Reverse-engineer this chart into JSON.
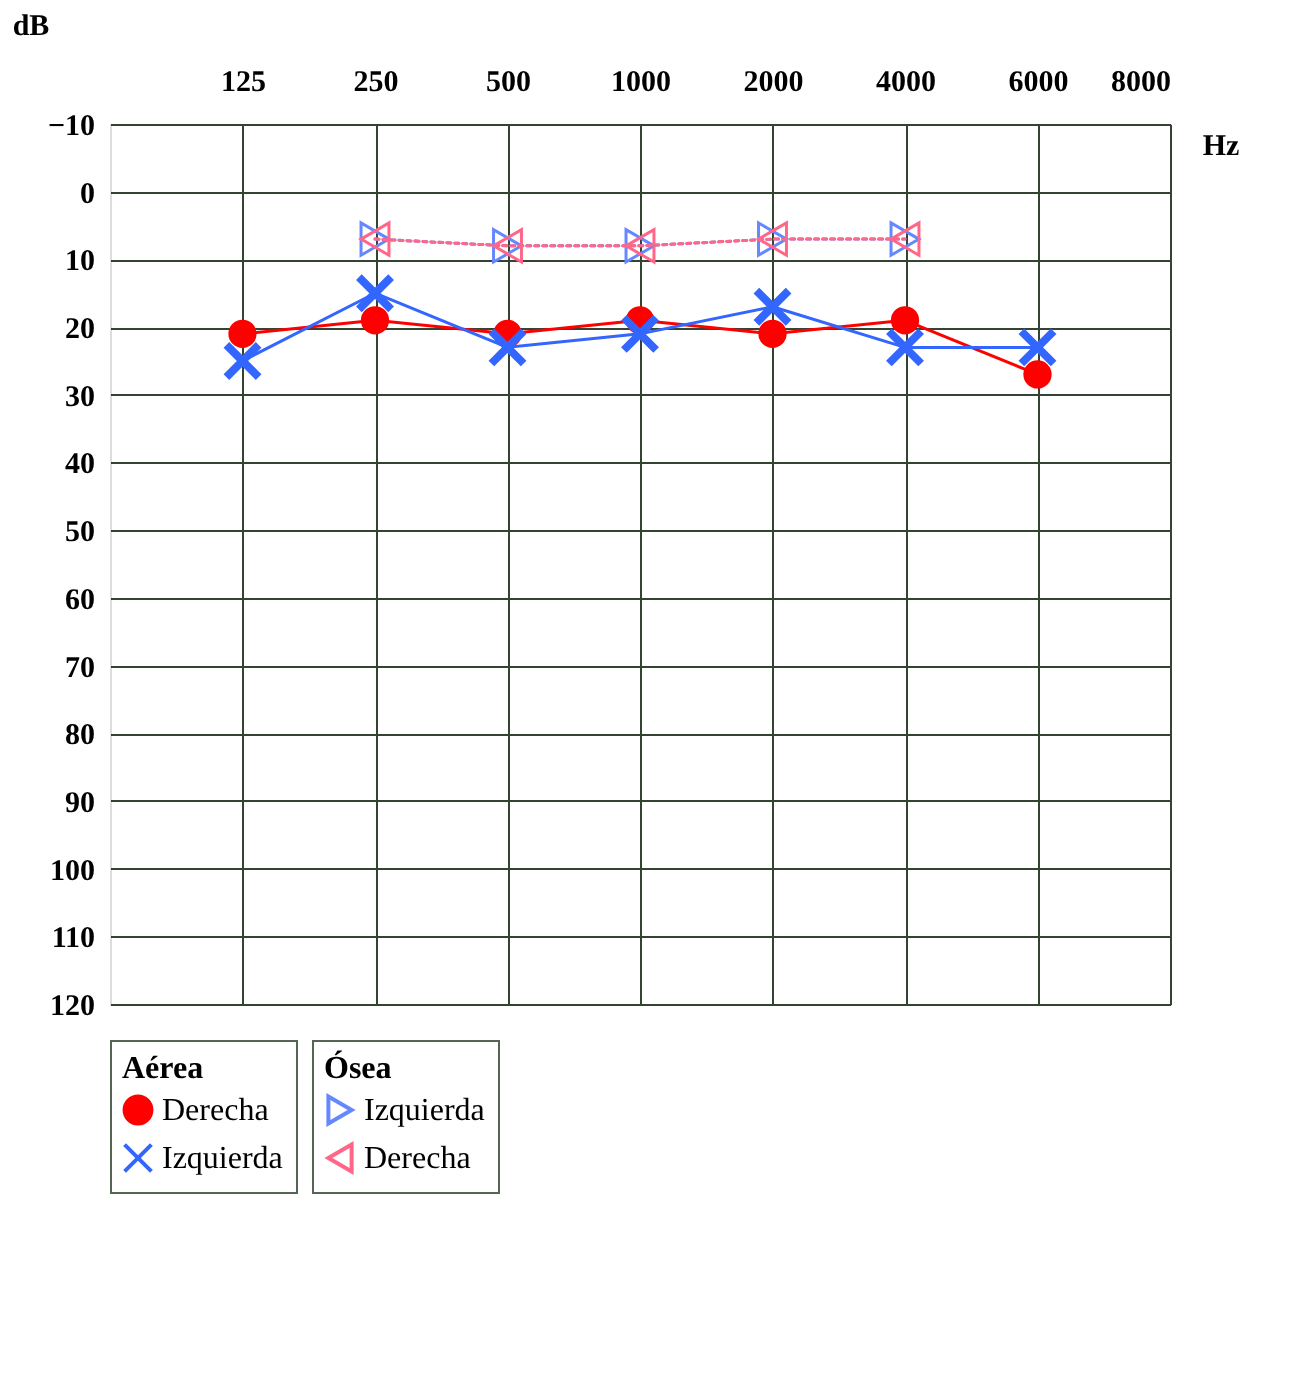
{
  "chart_data": {
    "type": "line",
    "categories": [
      "125",
      "250",
      "500",
      "1000",
      "2000",
      "4000",
      "6000",
      "8000"
    ],
    "xlabel": "Hz",
    "ylabel": "dB",
    "ylim": [
      120,
      -10
    ],
    "yticks": [
      -10,
      0,
      10,
      20,
      30,
      40,
      50,
      60,
      70,
      80,
      90,
      100,
      110,
      120
    ],
    "grid": true,
    "legend": "bottom",
    "legend_title": [
      "Aérea",
      "Ósea"
    ],
    "series": [
      {
        "name": "Derecha",
        "color": "#ff0000",
        "marker": "circle",
        "line_style": "solid",
        "values": [
          21,
          19,
          21,
          19,
          21,
          19,
          27,
          null
        ]
      },
      {
        "name": "Izquierda",
        "color": "#3366ff",
        "marker": "cross",
        "line_style": "solid",
        "values": [
          25,
          15,
          23,
          21,
          17,
          23,
          23,
          null
        ]
      },
      {
        "name": "Izquierda",
        "color": "#6688ff",
        "marker": "triangle",
        "line_style": "dotted",
        "values": [
          null,
          7,
          8,
          8,
          7,
          7,
          null,
          null
        ]
      },
      {
        "name": "Derecha",
        "color": "#ff6688",
        "marker": "triangle",
        "line_style": "dotted",
        "values": [
          null,
          7,
          8,
          8,
          7,
          7,
          null,
          null
        ]
      }
    ]
  }
}
